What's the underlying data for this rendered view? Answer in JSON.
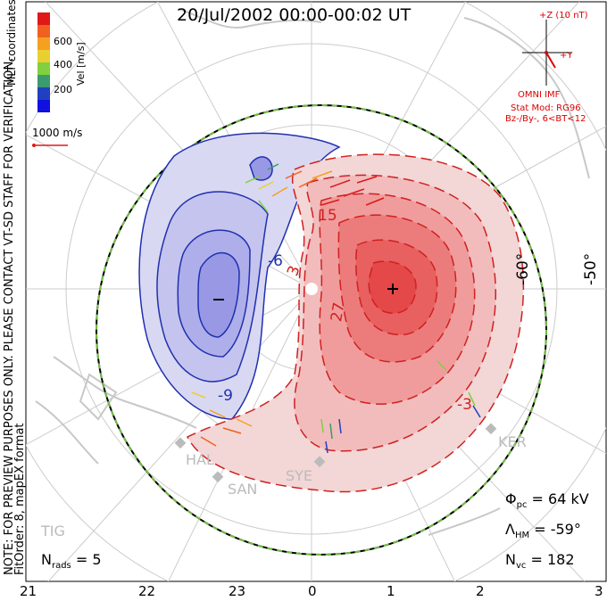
{
  "title": "20/Jul/2002 00:00-00:02 UT",
  "side_note": "NOTE: FOR PREVIEW PURPOSES ONLY. PLEASE CONTACT VT-SD STAFF FOR VERIFICATION.",
  "fitorder": "FitOrder: 8, mapEX format",
  "mlt_coords": "MLT coordinates",
  "colorbar": {
    "unit": "Vel [m/s]",
    "ticks": [
      "600",
      "400",
      "200"
    ],
    "colors": [
      "#e01818",
      "#f06020",
      "#f5a020",
      "#e8d030",
      "#80d040",
      "#3a9a70",
      "#2040c0",
      "#1010e0"
    ]
  },
  "scale_vector": "1000 m/s",
  "imf": {
    "plus_z": "+Z (10 nT)",
    "plus_y": "+Y",
    "omni": "OMNI IMF",
    "stat_mod": "Stat Mod: RG96",
    "bz_by": "Bz-/By-, 6<BT<12"
  },
  "mlt_ticks": [
    "21",
    "22",
    "23",
    "0",
    "1",
    "2",
    "3"
  ],
  "lat_labels": [
    "-60°",
    "-50°"
  ],
  "contour_labels": [
    "-6",
    "3",
    "-9",
    "15",
    "27",
    "-3"
  ],
  "stats": {
    "phi_pc_label": "Φ",
    "phi_pc_sub": "pc",
    "phi_pc_value": "= 64 kV",
    "lambda_label": "Λ",
    "lambda_sub": "HM",
    "lambda_value": "= -59°",
    "nvc_label": "N",
    "nvc_sub": "vc",
    "nvc_value": "= 182",
    "nrads_label": "N",
    "nrads_sub": "rads",
    "nrads_value": "= 5"
  },
  "radars": [
    "HAL",
    "SAN",
    "SYE",
    "KER",
    "TIG"
  ],
  "colors": {
    "positive_cell": "#e03030",
    "negative_cell": "#2030b0",
    "boundary": "#70c040"
  }
}
